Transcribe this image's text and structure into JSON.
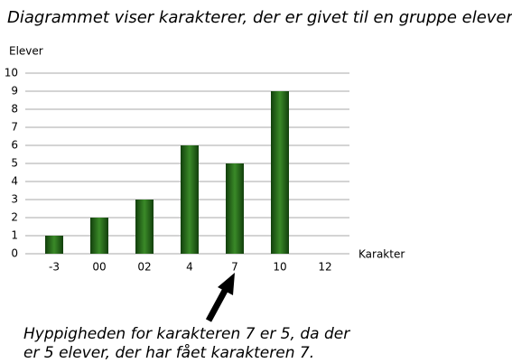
{
  "chart_data": {
    "type": "bar",
    "title": "Diagrammet viser karakterer, der er givet til en gruppe elever",
    "y_label": "Elever",
    "x_label": "Karakter",
    "categories": [
      "-3",
      "00",
      "02",
      "4",
      "7",
      "10",
      "12"
    ],
    "values": [
      1,
      2,
      3,
      6,
      5,
      9,
      0
    ],
    "color": "#3a8a28",
    "ylim": [
      0,
      10
    ],
    "yticks": [
      0,
      1,
      2,
      3,
      4,
      5,
      6,
      7,
      8,
      9,
      10
    ],
    "grid": true,
    "annotation": [
      "Hyppigheden for karakteren 7 er 5, da der",
      "er 5 elever, der har fået karakteren 7."
    ]
  }
}
